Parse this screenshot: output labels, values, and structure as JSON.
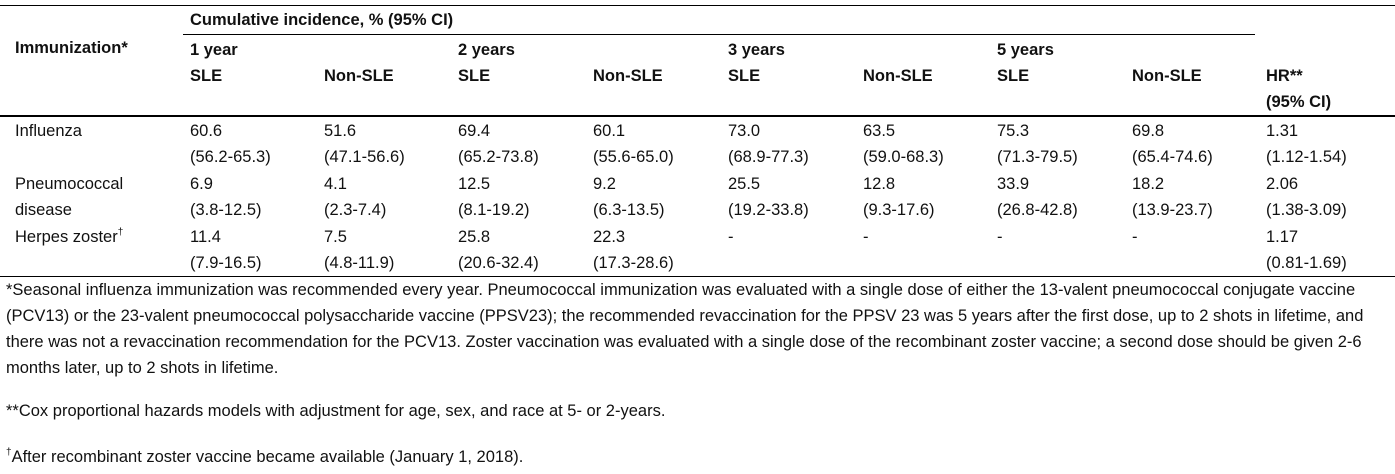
{
  "table": {
    "header": {
      "row_label": "Immunization*",
      "group": "Cumulative incidence, % (95% CI)",
      "periods": [
        "1 year",
        "2 years",
        "3 years",
        "5 years"
      ],
      "columns": [
        "SLE",
        "Non-SLE",
        "SLE",
        "Non-SLE",
        "SLE",
        "Non-SLE",
        "SLE",
        "Non-SLE"
      ],
      "hr": "HR**",
      "hr_ci": "(95% CI)"
    },
    "rows": [
      {
        "label": "Influenza",
        "cells": [
          {
            "value": "60.6",
            "ci": "(56.2-65.3)"
          },
          {
            "value": "51.6",
            "ci": "(47.1-56.6)"
          },
          {
            "value": "69.4",
            "ci": "(65.2-73.8)"
          },
          {
            "value": "60.1",
            "ci": "(55.6-65.0)"
          },
          {
            "value": "73.0",
            "ci": "(68.9-77.3)"
          },
          {
            "value": "63.5",
            "ci": "(59.0-68.3)"
          },
          {
            "value": "75.3",
            "ci": "(71.3-79.5)"
          },
          {
            "value": "69.8",
            "ci": "(65.4-74.6)"
          },
          {
            "value": "1.31",
            "ci": "(1.12-1.54)"
          }
        ]
      },
      {
        "label": "Pneumococcal disease",
        "cells": [
          {
            "value": "6.9",
            "ci": "(3.8-12.5)"
          },
          {
            "value": "4.1",
            "ci": "(2.3-7.4)"
          },
          {
            "value": "12.5",
            "ci": "(8.1-19.2)"
          },
          {
            "value": "9.2",
            "ci": "(6.3-13.5)"
          },
          {
            "value": "25.5",
            "ci": "(19.2-33.8)"
          },
          {
            "value": "12.8",
            "ci": "(9.3-17.6)"
          },
          {
            "value": "33.9",
            "ci": "(26.8-42.8)"
          },
          {
            "value": "18.2",
            "ci": "(13.9-23.7)"
          },
          {
            "value": "2.06",
            "ci": "(1.38-3.09)"
          }
        ]
      },
      {
        "label": "Herpes zoster",
        "mark": "†",
        "cells": [
          {
            "value": "11.4",
            "ci": "(7.9-16.5)"
          },
          {
            "value": "7.5",
            "ci": "(4.8-11.9)"
          },
          {
            "value": "25.8",
            "ci": "(20.6-32.4)"
          },
          {
            "value": "22.3",
            "ci": "(17.3-28.6)"
          },
          {
            "value": "-"
          },
          {
            "value": "-"
          },
          {
            "value": "-"
          },
          {
            "value": "-"
          },
          {
            "value": "1.17",
            "ci": "(0.81-1.69)"
          }
        ]
      }
    ],
    "footnotes": [
      {
        "text": "*Seasonal influenza immunization was recommended every year. Pneumococcal immunization was evaluated with a single dose of either the 13-valent pneumococcal conjugate vaccine (PCV13) or the 23-valent pneumococcal polysaccharide vaccine (PPSV23); the recommended revaccination for the PPSV 23 was 5 years after the first dose, up to 2 shots in lifetime, and there was not a revaccination recommendation for the PCV13. Zoster vaccination was evaluated with a single dose of the recombinant zoster vaccine; a second dose should be given 2-6 months later, up to 2 shots in lifetime."
      },
      {
        "text": "**Cox proportional hazards models with adjustment for age, sex, and race at 5- or 2-years."
      },
      {
        "mark": "†",
        "text": "After recombinant zoster vaccine became available (January 1, 2018)."
      }
    ]
  }
}
